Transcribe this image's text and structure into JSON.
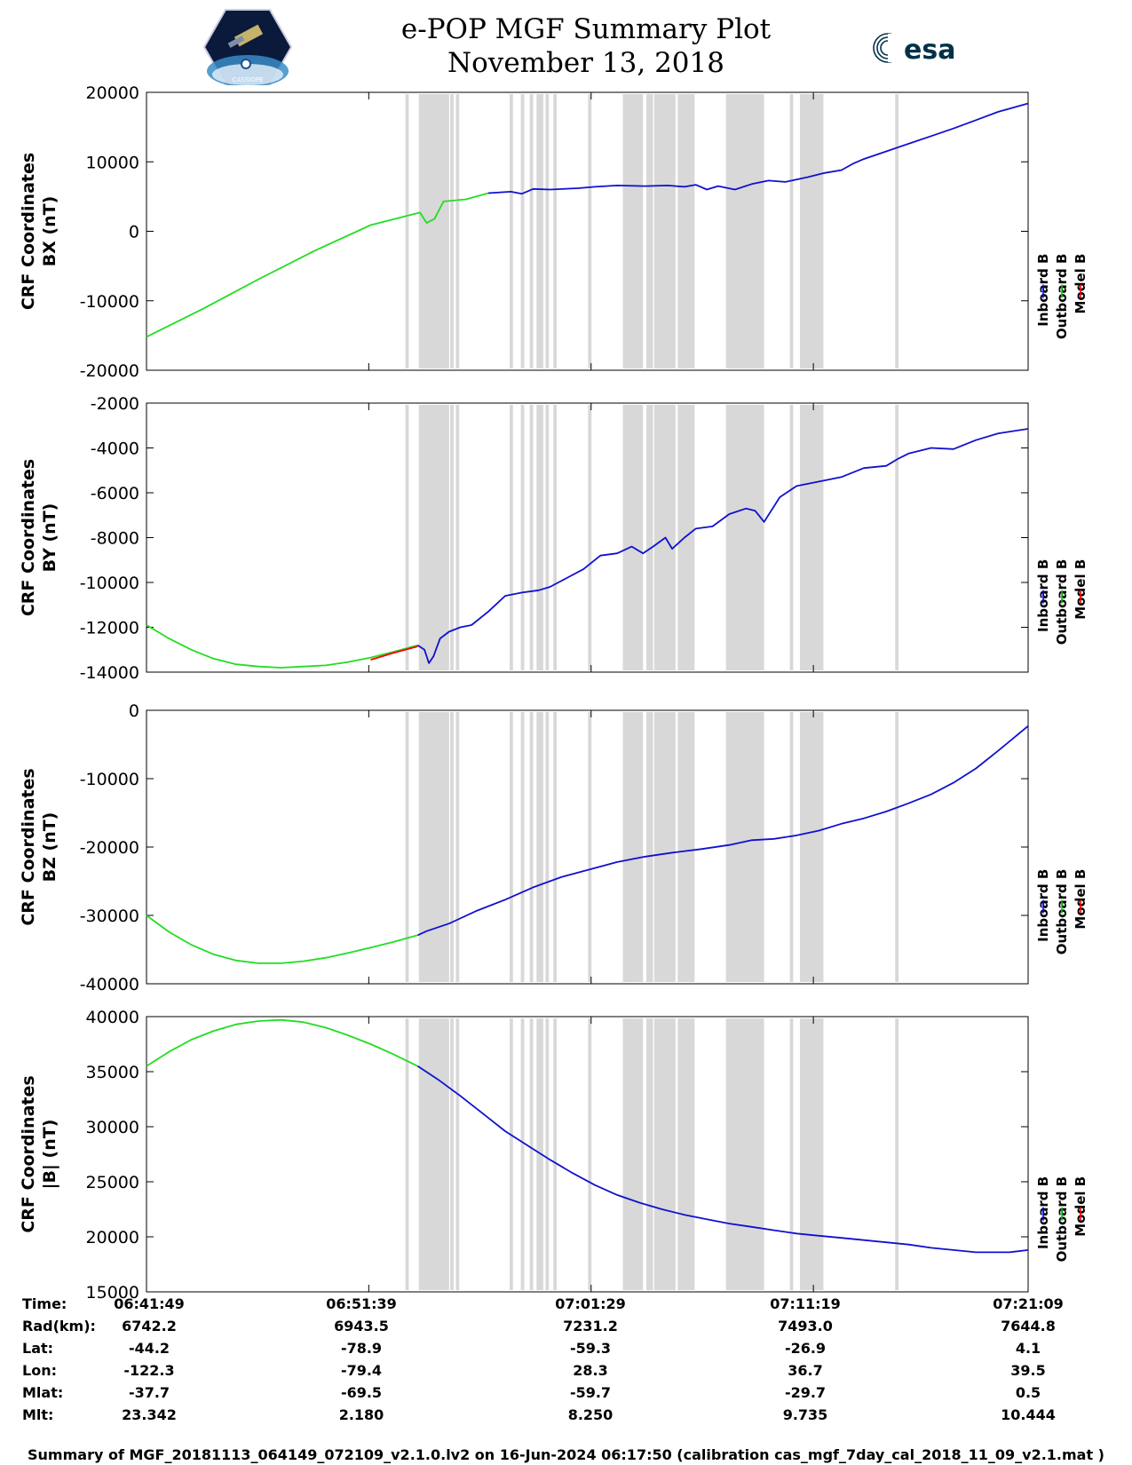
{
  "header": {
    "title": "e-POP MGF Summary Plot",
    "date": "November 13, 2018",
    "logo_left": "CASSIOPE",
    "logo_right": "esa"
  },
  "legend": {
    "items": [
      {
        "label": "Inboard B",
        "color": "#0000ff"
      },
      {
        "label": "Outboard B",
        "color": "#00cc00"
      },
      {
        "label": "Model B",
        "color": "#ff0000"
      }
    ]
  },
  "colors": {
    "inboard": "#1010d0",
    "outboard": "#22dd22",
    "model": "#ff0000",
    "gap": "#d8d8d8"
  },
  "chart_data": [
    {
      "type": "line",
      "title": "CRF Coordinates",
      "ylabel": "BX (nT)",
      "ylim": [
        -20000,
        20000
      ],
      "yticks": [
        20000,
        10000,
        0,
        -10000,
        -20000
      ],
      "x_range_min": [
        0,
        39.33
      ],
      "series": [
        {
          "name": "Outboard B",
          "color": "#22dd22",
          "x": [
            0,
            5,
            10,
            15,
            20,
            24.4,
            25.0,
            25.7,
            26.5,
            28.5,
            30.5
          ],
          "y": [
            -15200,
            -11200,
            -6900,
            -2800,
            900,
            2700,
            1200,
            1800,
            4300,
            4600,
            5500
          ]
        },
        {
          "name": "Inboard B",
          "color": "#1010d0",
          "x": [
            30.5,
            32.5,
            33.5,
            34.5,
            36,
            38.5,
            40,
            42,
            44.5,
            46.5,
            48,
            49,
            50,
            51,
            52.5,
            54,
            55.5,
            57,
            59,
            60.5,
            62,
            63,
            64,
            66,
            68,
            70,
            72,
            74,
            76,
            78.66
          ],
          "y": [
            5500,
            5700,
            5400,
            6100,
            6000,
            6200,
            6400,
            6600,
            6500,
            6600,
            6400,
            6700,
            6000,
            6500,
            6000,
            6800,
            7300,
            7100,
            7800,
            8400,
            8800,
            9700,
            10400,
            11500,
            12600,
            13700,
            14800,
            16000,
            17200,
            18400
          ]
        }
      ]
    },
    {
      "type": "line",
      "title": "CRF Coordinates",
      "ylabel": "BY (nT)",
      "ylim": [
        -14000,
        -2000
      ],
      "yticks": [
        -2000,
        -4000,
        -6000,
        -8000,
        -10000,
        -12000,
        -14000
      ],
      "series": [
        {
          "name": "Outboard B",
          "color": "#22dd22",
          "x": [
            0,
            2,
            4,
            6,
            8,
            10,
            12,
            14,
            16,
            18,
            20,
            22,
            24.2
          ],
          "y": [
            -11900,
            -12500,
            -13000,
            -13400,
            -13650,
            -13750,
            -13800,
            -13750,
            -13700,
            -13550,
            -13350,
            -13100,
            -12800
          ]
        },
        {
          "name": "Model B",
          "color": "#ff0000",
          "x": [
            20,
            22,
            24.2
          ],
          "y": [
            -13450,
            -13150,
            -12850
          ]
        },
        {
          "name": "Inboard B",
          "color": "#1010d0",
          "x": [
            24.2,
            24.8,
            25.2,
            25.6,
            26.2,
            27.0,
            28.0,
            29.0,
            30.5,
            32,
            33.5,
            35,
            36,
            37.5,
            39,
            40.5,
            42,
            43.3,
            44.3,
            45.2,
            46.3,
            46.9,
            48,
            49,
            50.5,
            52,
            53.5,
            54.3,
            55.1,
            56.5,
            58,
            60,
            62,
            64,
            66,
            67,
            68,
            70,
            72,
            74,
            76,
            78.66
          ],
          "y": [
            -12800,
            -13000,
            -13600,
            -13300,
            -12500,
            -12200,
            -12000,
            -11900,
            -11300,
            -10600,
            -10450,
            -10350,
            -10200,
            -9800,
            -9400,
            -8800,
            -8700,
            -8400,
            -8700,
            -8400,
            -8000,
            -8500,
            -8000,
            -7600,
            -7500,
            -6950,
            -6700,
            -6800,
            -7300,
            -6200,
            -5700,
            -5500,
            -5300,
            -4900,
            -4800,
            -4500,
            -4250,
            -4000,
            -4050,
            -3650,
            -3350,
            -3150
          ]
        }
      ]
    },
    {
      "type": "line",
      "title": "CRF Coordinates",
      "ylabel": "BZ (nT)",
      "ylim": [
        -40000,
        0
      ],
      "yticks": [
        0,
        -10000,
        -20000,
        -30000,
        -40000
      ],
      "series": [
        {
          "name": "Outboard B",
          "color": "#22dd22",
          "x": [
            0,
            2,
            4,
            6,
            8,
            10,
            12,
            14,
            16,
            18,
            20,
            22,
            24.2
          ],
          "y": [
            -30000,
            -32400,
            -34300,
            -35700,
            -36600,
            -37000,
            -37000,
            -36700,
            -36200,
            -35500,
            -34700,
            -33900,
            -32900
          ]
        },
        {
          "name": "Inboard B",
          "color": "#1010d0",
          "x": [
            24.2,
            25,
            27,
            29.5,
            32,
            34.5,
            37,
            39.5,
            42,
            44.5,
            47,
            49.5,
            52,
            54,
            56,
            58,
            60,
            62,
            64,
            66,
            68,
            70,
            72,
            74,
            76,
            78.66
          ],
          "y": [
            -32900,
            -32300,
            -31200,
            -29300,
            -27700,
            -25900,
            -24400,
            -23300,
            -22200,
            -21400,
            -20800,
            -20300,
            -19700,
            -19000,
            -18800,
            -18300,
            -17600,
            -16600,
            -15800,
            -14800,
            -13600,
            -12300,
            -10600,
            -8500,
            -5900,
            -2300
          ]
        }
      ]
    },
    {
      "type": "line",
      "title": "CRF Coordinates",
      "ylabel": "|B| (nT)",
      "ylim": [
        15000,
        40000
      ],
      "yticks": [
        40000,
        35000,
        30000,
        25000,
        20000,
        15000
      ],
      "series": [
        {
          "name": "Outboard B",
          "color": "#22dd22",
          "x": [
            0,
            2,
            4,
            6,
            8,
            10,
            12,
            14,
            16,
            18,
            20,
            22,
            24.2
          ],
          "y": [
            35500,
            36800,
            37900,
            38700,
            39300,
            39600,
            39700,
            39500,
            39000,
            38300,
            37500,
            36600,
            35500
          ]
        },
        {
          "name": "Inboard B",
          "color": "#1010d0",
          "x": [
            24.2,
            26,
            28,
            30,
            32,
            34,
            36,
            38,
            40,
            42,
            44,
            46,
            48,
            50,
            52,
            54,
            56,
            58,
            60,
            62,
            64,
            66,
            68,
            70,
            72,
            74,
            75.5,
            77,
            78.66
          ],
          "y": [
            35500,
            34300,
            32800,
            31200,
            29600,
            28300,
            27000,
            25800,
            24700,
            23800,
            23100,
            22500,
            22000,
            21600,
            21200,
            20900,
            20600,
            20300,
            20100,
            19900,
            19700,
            19500,
            19300,
            19000,
            18800,
            18600,
            18600,
            18600,
            18800
          ]
        }
      ]
    }
  ],
  "data_gaps_min": [
    [
      23.1,
      23.4
    ],
    [
      24.3,
      27.0
    ],
    [
      27.1,
      27.4
    ],
    [
      27.6,
      27.9
    ],
    [
      32.4,
      32.7
    ],
    [
      33.4,
      33.7
    ],
    [
      34.2,
      34.5
    ],
    [
      34.8,
      35.4
    ],
    [
      35.6,
      35.9
    ],
    [
      36.3,
      36.6
    ],
    [
      39.4,
      39.7
    ],
    [
      42.5,
      44.3
    ],
    [
      44.6,
      45.2
    ],
    [
      45.3,
      47.2
    ],
    [
      47.4,
      48.9
    ],
    [
      51.7,
      55.1
    ],
    [
      57.4,
      57.7
    ],
    [
      58.3,
      60.4
    ],
    [
      66.8,
      67.1
    ]
  ],
  "orbit_table": {
    "labels": [
      "Time:",
      "Rad(km):",
      "Lat:",
      "Lon:",
      "Mlat:",
      "Mlt:"
    ],
    "columns": [
      [
        "06:41:49",
        "6742.2",
        "-44.2",
        "-122.3",
        "-37.7",
        "23.342"
      ],
      [
        "06:51:39",
        "6943.5",
        "-78.9",
        "-79.4",
        "-69.5",
        "2.180"
      ],
      [
        "07:01:29",
        "7231.2",
        "-59.3",
        "28.3",
        "-59.7",
        "8.250"
      ],
      [
        "07:11:19",
        "7493.0",
        "-26.9",
        "36.7",
        "-29.7",
        "9.735"
      ],
      [
        "07:21:09",
        "7644.8",
        "4.1",
        "39.5",
        "0.5",
        "10.444"
      ]
    ]
  },
  "footer": "Summary of MGF_20181113_064149_072109_v2.1.0.lv2 on 16-Jun-2024 06:17:50 (calibration cas_mgf_7day_cal_2018_11_09_v2.1.mat )"
}
